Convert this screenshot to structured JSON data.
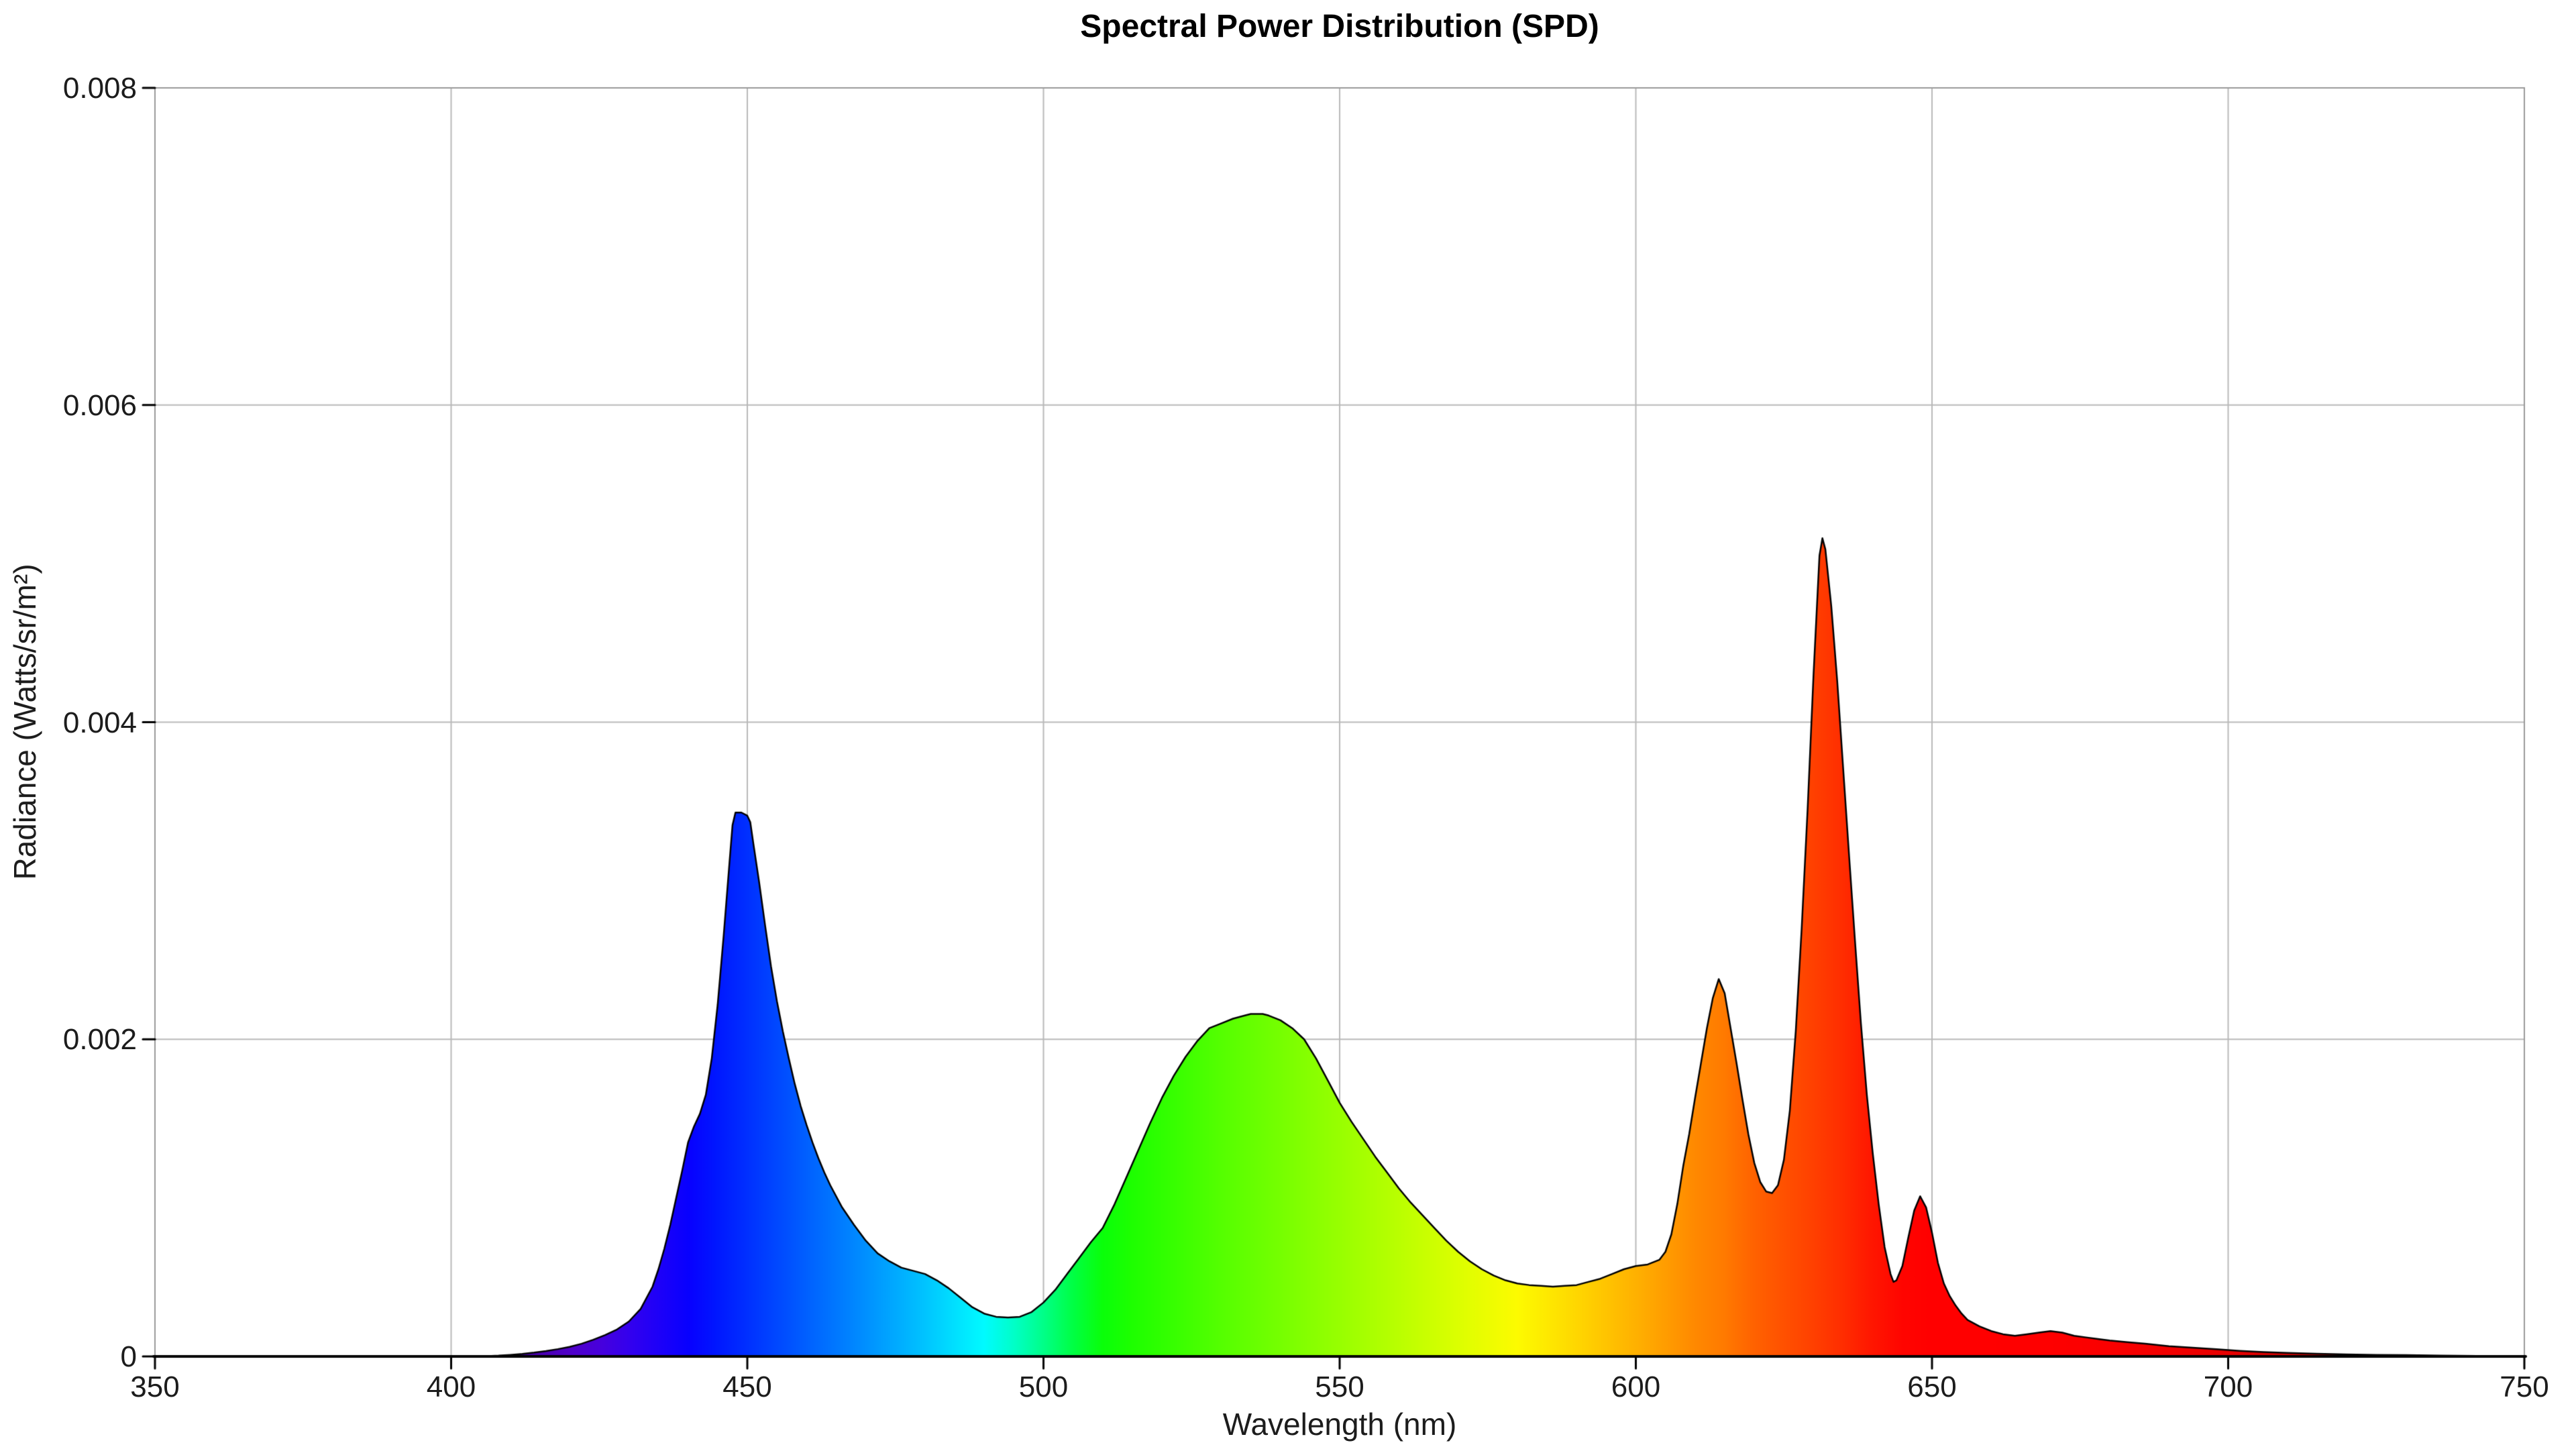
{
  "chart_data": {
    "type": "area",
    "title": "Spectral Power Distribution (SPD)",
    "xlabel": "Wavelength (nm)",
    "ylabel": "Radiance (Watts/sr/m²)",
    "xlim": [
      350,
      750
    ],
    "ylim": [
      0,
      0.008
    ],
    "grid": true,
    "legend_position": "none",
    "x_ticks": [
      350,
      400,
      450,
      500,
      550,
      600,
      650,
      700,
      750
    ],
    "x_tick_labels": [
      "350",
      "400",
      "450",
      "500",
      "550",
      "600",
      "650",
      "700",
      "750"
    ],
    "y_ticks": [
      0,
      0.002,
      0.004,
      0.006,
      0.008
    ],
    "y_tick_labels": [
      "0",
      "0.002",
      "0.004",
      "0.006",
      "0.008"
    ],
    "colors": {
      "background": "#ffffff",
      "grid": "#b9b9b9",
      "frame": "#999999",
      "axis": "#000000",
      "outline": "#000000",
      "text": "#1c1c1c"
    },
    "fill": "spectral-gradient-by-wavelength",
    "spectrum_stops": [
      [
        400,
        "#3C0080"
      ],
      [
        410,
        "#46009B"
      ],
      [
        420,
        "#5000C8"
      ],
      [
        425,
        "#4800DC"
      ],
      [
        430,
        "#3400EE"
      ],
      [
        435,
        "#1E00F8"
      ],
      [
        440,
        "#0800FF"
      ],
      [
        445,
        "#0018FF"
      ],
      [
        450,
        "#0030FF"
      ],
      [
        455,
        "#0048FF"
      ],
      [
        460,
        "#0060FF"
      ],
      [
        465,
        "#0078FF"
      ],
      [
        470,
        "#0090FF"
      ],
      [
        475,
        "#00AAFF"
      ],
      [
        480,
        "#00C4FF"
      ],
      [
        485,
        "#00E0FF"
      ],
      [
        490,
        "#00FBFF"
      ],
      [
        495,
        "#00FFC8"
      ],
      [
        500,
        "#00FF88"
      ],
      [
        505,
        "#00FF44"
      ],
      [
        510,
        "#0AFF0A"
      ],
      [
        515,
        "#1EFF00"
      ],
      [
        520,
        "#30FF00"
      ],
      [
        530,
        "#55FF00"
      ],
      [
        540,
        "#76FF00"
      ],
      [
        550,
        "#98FF00"
      ],
      [
        560,
        "#BAFF00"
      ],
      [
        570,
        "#DCFF00"
      ],
      [
        580,
        "#FDFB00"
      ],
      [
        590,
        "#FFD700"
      ],
      [
        600,
        "#FFB100"
      ],
      [
        610,
        "#FF8900"
      ],
      [
        615,
        "#FF7A00"
      ],
      [
        620,
        "#FF6200"
      ],
      [
        625,
        "#FF5100"
      ],
      [
        630,
        "#FF4000"
      ],
      [
        635,
        "#FF2D00"
      ],
      [
        640,
        "#FF1600"
      ],
      [
        645,
        "#FF0500"
      ],
      [
        650,
        "#FF0000"
      ],
      [
        660,
        "#FF0000"
      ],
      [
        670,
        "#FE0000"
      ],
      [
        680,
        "#FA0000"
      ],
      [
        690,
        "#F20000"
      ],
      [
        700,
        "#E80000"
      ],
      [
        710,
        "#D80000"
      ],
      [
        720,
        "#C60000"
      ],
      [
        730,
        "#B40000"
      ],
      [
        740,
        "#A20000"
      ],
      [
        750,
        "#900000"
      ]
    ],
    "peaks": [
      {
        "wavelength_nm": 448,
        "radiance": 0.00343
      },
      {
        "wavelength_nm": 537,
        "radiance": 0.00216
      },
      {
        "wavelength_nm": 614,
        "radiance": 0.00238
      },
      {
        "wavelength_nm": 631.5,
        "radiance": 0.00516
      },
      {
        "wavelength_nm": 648,
        "radiance": 0.00101
      }
    ],
    "points": [
      [
        350,
        0
      ],
      [
        380,
        0
      ],
      [
        400,
        0
      ],
      [
        405,
        0
      ],
      [
        408,
        5e-06
      ],
      [
        410,
        1e-05
      ],
      [
        412,
        1.6e-05
      ],
      [
        414,
        2.4e-05
      ],
      [
        416,
        3.4e-05
      ],
      [
        418,
        4.6e-05
      ],
      [
        420,
        6e-05
      ],
      [
        422,
        8e-05
      ],
      [
        424,
        0.000105
      ],
      [
        426,
        0.000135
      ],
      [
        428,
        0.00017
      ],
      [
        430,
        0.00022
      ],
      [
        432,
        0.0003
      ],
      [
        434,
        0.00044
      ],
      [
        435,
        0.00055
      ],
      [
        436,
        0.00068
      ],
      [
        437,
        0.00083
      ],
      [
        438,
        0.001
      ],
      [
        439,
        0.00117
      ],
      [
        440,
        0.00135
      ],
      [
        441,
        0.00145
      ],
      [
        442,
        0.00153
      ],
      [
        443,
        0.00165
      ],
      [
        444,
        0.00188
      ],
      [
        445,
        0.00222
      ],
      [
        446,
        0.00265
      ],
      [
        447,
        0.00312
      ],
      [
        447.5,
        0.00335
      ],
      [
        448,
        0.00343
      ],
      [
        449,
        0.00343
      ],
      [
        450,
        0.00341
      ],
      [
        450.5,
        0.00337
      ],
      [
        451,
        0.00324
      ],
      [
        452,
        0.00299
      ],
      [
        453,
        0.00272
      ],
      [
        454,
        0.00246
      ],
      [
        455,
        0.00224
      ],
      [
        456,
        0.00205
      ],
      [
        457,
        0.00188
      ],
      [
        458,
        0.00172
      ],
      [
        459,
        0.00158
      ],
      [
        460,
        0.00146
      ],
      [
        461,
        0.00135
      ],
      [
        462,
        0.00125
      ],
      [
        463,
        0.00116
      ],
      [
        464,
        0.00108
      ],
      [
        466,
        0.00094
      ],
      [
        468,
        0.00083
      ],
      [
        470,
        0.00073
      ],
      [
        472,
        0.00065
      ],
      [
        474,
        0.0006
      ],
      [
        476,
        0.00056
      ],
      [
        478,
        0.00054
      ],
      [
        480,
        0.00052
      ],
      [
        482,
        0.00048
      ],
      [
        484,
        0.00043
      ],
      [
        486,
        0.00037
      ],
      [
        488,
        0.00031
      ],
      [
        490,
        0.00027
      ],
      [
        492,
        0.00025
      ],
      [
        494,
        0.000245
      ],
      [
        496,
        0.00025
      ],
      [
        498,
        0.00028
      ],
      [
        500,
        0.00034
      ],
      [
        502,
        0.00042
      ],
      [
        504,
        0.00052
      ],
      [
        506,
        0.00062
      ],
      [
        508,
        0.00072
      ],
      [
        510,
        0.00081
      ],
      [
        512,
        0.00096
      ],
      [
        514,
        0.00113
      ],
      [
        516,
        0.0013
      ],
      [
        518,
        0.00147
      ],
      [
        520,
        0.00163
      ],
      [
        522,
        0.00177
      ],
      [
        524,
        0.00189
      ],
      [
        526,
        0.00199
      ],
      [
        528,
        0.00207
      ],
      [
        530,
        0.0021
      ],
      [
        532,
        0.00213
      ],
      [
        534,
        0.00215
      ],
      [
        535,
        0.00216
      ],
      [
        536,
        0.00216
      ],
      [
        537,
        0.00216
      ],
      [
        538,
        0.00215
      ],
      [
        540,
        0.00212
      ],
      [
        542,
        0.00207
      ],
      [
        544,
        0.002
      ],
      [
        546,
        0.00188
      ],
      [
        548,
        0.00174
      ],
      [
        550,
        0.0016
      ],
      [
        552,
        0.00148
      ],
      [
        554,
        0.00137
      ],
      [
        556,
        0.00126
      ],
      [
        558,
        0.00116
      ],
      [
        560,
        0.00106
      ],
      [
        562,
        0.00097
      ],
      [
        564,
        0.00089
      ],
      [
        566,
        0.00081
      ],
      [
        568,
        0.00073
      ],
      [
        570,
        0.00066
      ],
      [
        572,
        0.0006
      ],
      [
        574,
        0.00055
      ],
      [
        576,
        0.00051
      ],
      [
        578,
        0.00048
      ],
      [
        580,
        0.00046
      ],
      [
        582,
        0.00045
      ],
      [
        584,
        0.000445
      ],
      [
        586,
        0.00044
      ],
      [
        588,
        0.000445
      ],
      [
        590,
        0.00045
      ],
      [
        592,
        0.00047
      ],
      [
        594,
        0.00049
      ],
      [
        596,
        0.00052
      ],
      [
        598,
        0.00055
      ],
      [
        600,
        0.00057
      ],
      [
        602,
        0.00058
      ],
      [
        604,
        0.00061
      ],
      [
        605,
        0.00066
      ],
      [
        606,
        0.00077
      ],
      [
        607,
        0.00096
      ],
      [
        608,
        0.0012
      ],
      [
        609,
        0.0014
      ],
      [
        610,
        0.00163
      ],
      [
        611,
        0.00185
      ],
      [
        612,
        0.00207
      ],
      [
        613,
        0.00226
      ],
      [
        614,
        0.00238
      ],
      [
        615,
        0.00229
      ],
      [
        616,
        0.00207
      ],
      [
        617,
        0.00185
      ],
      [
        618,
        0.00162
      ],
      [
        619,
        0.0014
      ],
      [
        620,
        0.00122
      ],
      [
        621,
        0.0011
      ],
      [
        622,
        0.00104
      ],
      [
        623,
        0.00103
      ],
      [
        624,
        0.00108
      ],
      [
        625,
        0.00124
      ],
      [
        626,
        0.00155
      ],
      [
        627,
        0.00205
      ],
      [
        628,
        0.0027
      ],
      [
        629,
        0.00345
      ],
      [
        630,
        0.0043
      ],
      [
        631,
        0.00505
      ],
      [
        631.5,
        0.00516
      ],
      [
        632,
        0.00509
      ],
      [
        633,
        0.00473
      ],
      [
        634,
        0.00426
      ],
      [
        635,
        0.00371
      ],
      [
        636,
        0.00316
      ],
      [
        637,
        0.00262
      ],
      [
        638,
        0.0021
      ],
      [
        639,
        0.00165
      ],
      [
        640,
        0.00128
      ],
      [
        641,
        0.00096
      ],
      [
        642,
        0.00069
      ],
      [
        643,
        0.00052
      ],
      [
        643.5,
        0.00047
      ],
      [
        644,
        0.00048
      ],
      [
        645,
        0.00057
      ],
      [
        646,
        0.00075
      ],
      [
        647,
        0.00092
      ],
      [
        648,
        0.00101
      ],
      [
        649,
        0.00094
      ],
      [
        650,
        0.00078
      ],
      [
        651,
        0.00059
      ],
      [
        652,
        0.00046
      ],
      [
        653,
        0.00038
      ],
      [
        654,
        0.00032
      ],
      [
        655,
        0.00027
      ],
      [
        656,
        0.00023
      ],
      [
        658,
        0.00019
      ],
      [
        660,
        0.00016
      ],
      [
        662,
        0.00014
      ],
      [
        664,
        0.00013
      ],
      [
        666,
        0.00014
      ],
      [
        668,
        0.00015
      ],
      [
        670,
        0.00016
      ],
      [
        672,
        0.00015
      ],
      [
        674,
        0.00013
      ],
      [
        676,
        0.00012
      ],
      [
        678,
        0.00011
      ],
      [
        680,
        0.0001
      ],
      [
        683,
        9e-05
      ],
      [
        686,
        8e-05
      ],
      [
        690,
        6.5e-05
      ],
      [
        694,
        5.5e-05
      ],
      [
        698,
        4.5e-05
      ],
      [
        702,
        3.5e-05
      ],
      [
        706,
        2.8e-05
      ],
      [
        710,
        2.2e-05
      ],
      [
        715,
        1.7e-05
      ],
      [
        720,
        1.3e-05
      ],
      [
        725,
        1e-05
      ],
      [
        730,
        8e-06
      ],
      [
        736,
        5e-06
      ],
      [
        742,
        3e-06
      ],
      [
        746,
        2e-06
      ],
      [
        750,
        2e-06
      ]
    ]
  }
}
